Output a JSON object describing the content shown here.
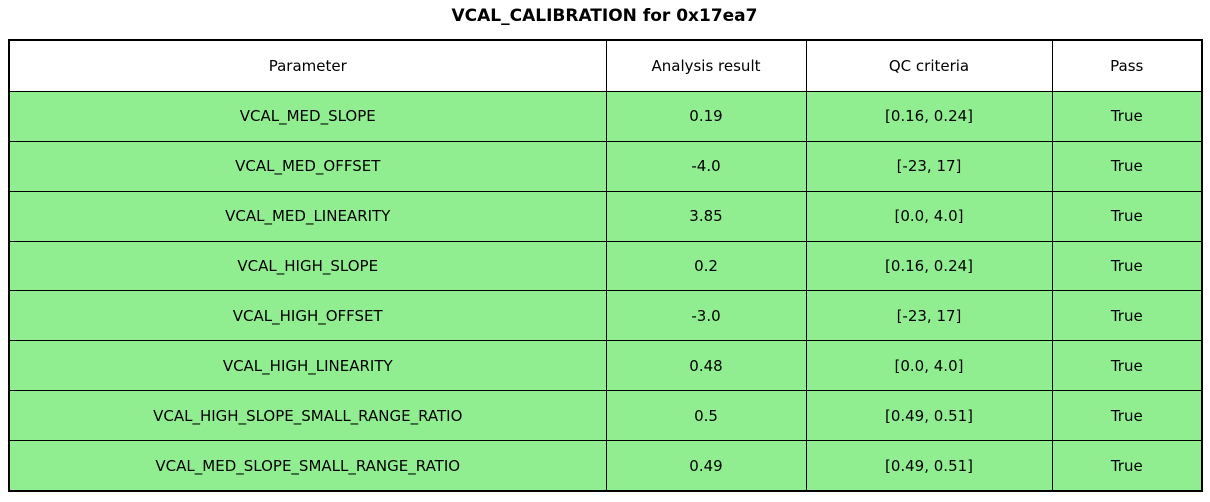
{
  "title": "VCAL_CALIBRATION for 0x17ea7",
  "chart_data": {
    "type": "table",
    "title": "VCAL_CALIBRATION for 0x17ea7",
    "columns": [
      "Parameter",
      "Analysis result",
      "QC criteria",
      "Pass"
    ],
    "rows": [
      [
        "VCAL_MED_SLOPE",
        "0.19",
        "[0.16, 0.24]",
        "True"
      ],
      [
        "VCAL_MED_OFFSET",
        "-4.0",
        "[-23, 17]",
        "True"
      ],
      [
        "VCAL_MED_LINEARITY",
        "3.85",
        "[0.0, 4.0]",
        "True"
      ],
      [
        "VCAL_HIGH_SLOPE",
        "0.2",
        "[0.16, 0.24]",
        "True"
      ],
      [
        "VCAL_HIGH_OFFSET",
        "-3.0",
        "[-23, 17]",
        "True"
      ],
      [
        "VCAL_HIGH_LINEARITY",
        "0.48",
        "[0.0, 4.0]",
        "True"
      ],
      [
        "VCAL_HIGH_SLOPE_SMALL_RANGE_RATIO",
        "0.5",
        "[0.49, 0.51]",
        "True"
      ],
      [
        "VCAL_MED_SLOPE_SMALL_RANGE_RATIO",
        "0.49",
        "[0.49, 0.51]",
        "True"
      ]
    ],
    "layout": {
      "header_background": "#ffffff",
      "row_background": "#90ee90",
      "border_color": "#000000",
      "text_color": "#000000",
      "pass_all": true
    }
  }
}
